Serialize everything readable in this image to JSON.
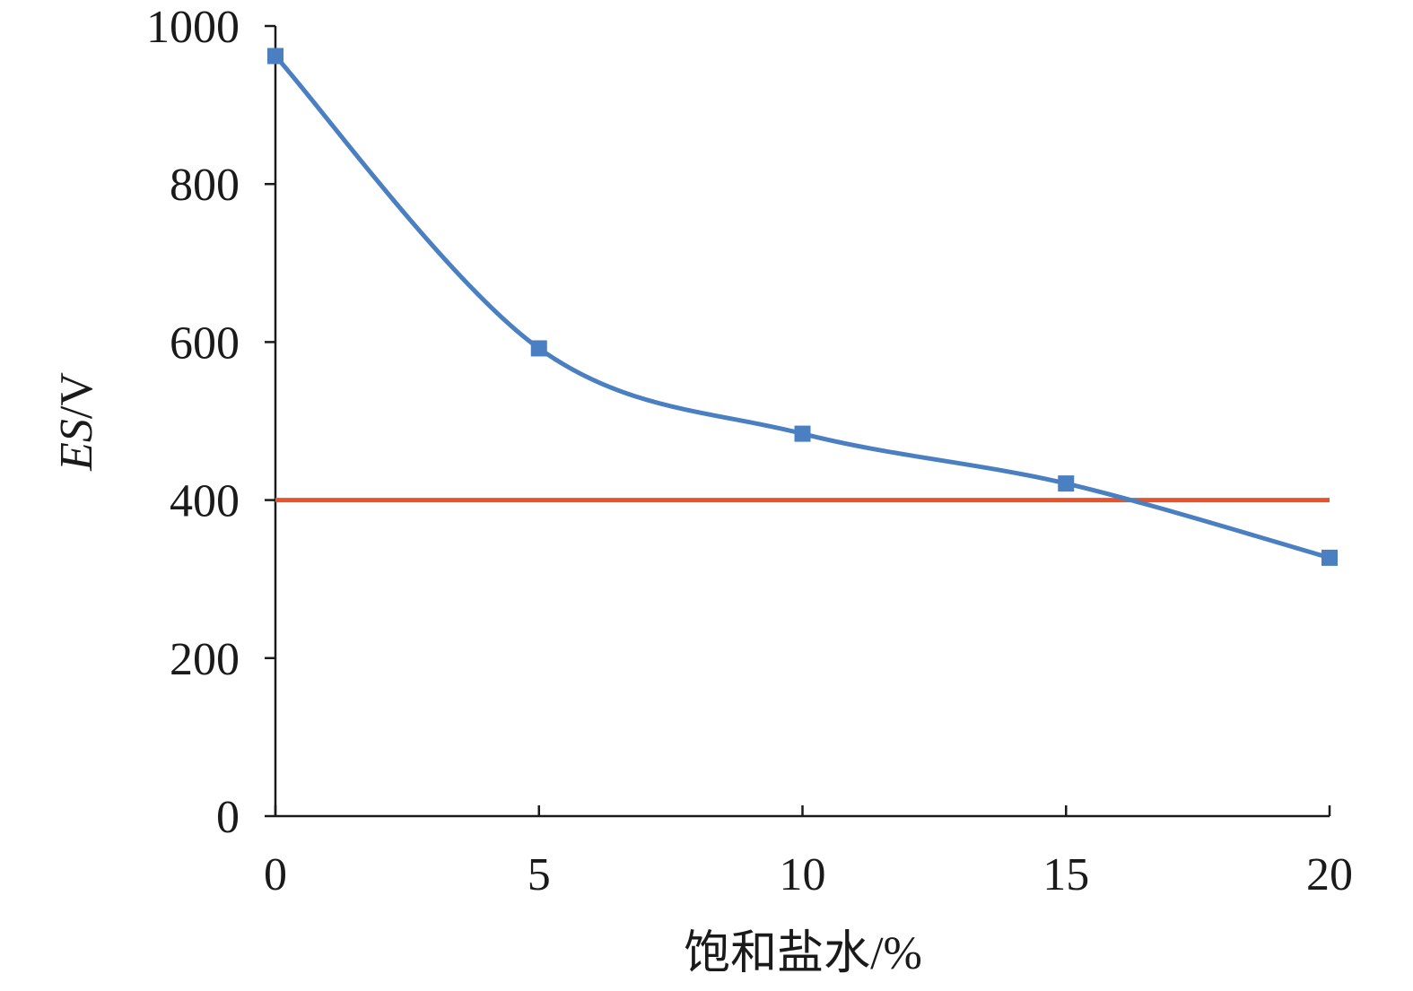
{
  "chart_data": {
    "type": "line",
    "title": "",
    "xlabel": "饱和盐水/%",
    "ylabel_main": "ES",
    "ylabel_unit": "/V",
    "xlim": [
      0,
      20
    ],
    "ylim": [
      0,
      1000
    ],
    "x_ticks": [
      0,
      5,
      10,
      15,
      20
    ],
    "y_ticks": [
      0,
      200,
      400,
      600,
      800,
      1000
    ],
    "grid": false,
    "series": [
      {
        "x": [
          0,
          5,
          10,
          15,
          20
        ],
        "values": [
          962,
          592,
          484,
          421,
          327
        ],
        "color": "#4a7fc1",
        "marker": "square"
      }
    ],
    "reference_line": {
      "y": 400,
      "color": "#e8532b"
    }
  }
}
